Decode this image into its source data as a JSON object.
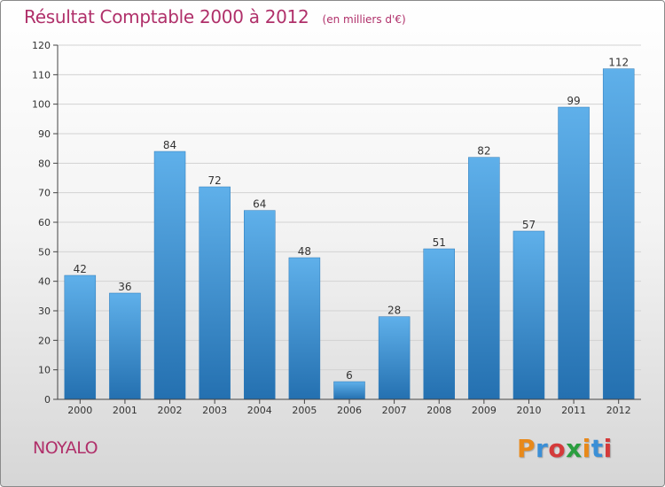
{
  "title": "Résultat Comptable 2000 à 2012",
  "subtitle": "(en milliers d'€)",
  "commune": "NOYALO",
  "brand": {
    "text": "Proxiti",
    "letter_colors": [
      "#e8891a",
      "#3b8fd6",
      "#d43a3a",
      "#2a9e3f",
      "#e8891a",
      "#3b8fd6",
      "#d43a3a"
    ]
  },
  "colors": {
    "bar_top": "#5fb0ea",
    "bar_bottom": "#2470b0",
    "accent": "#b0306a"
  },
  "chart_data": {
    "type": "bar",
    "title": "Résultat Comptable 2000 à 2012",
    "xlabel": "",
    "ylabel": "(en milliers d'€)",
    "ylim": [
      0,
      120
    ],
    "yticks": [
      0,
      10,
      20,
      30,
      40,
      50,
      60,
      70,
      80,
      90,
      100,
      110,
      120
    ],
    "grid": true,
    "categories": [
      "2000",
      "2001",
      "2002",
      "2003",
      "2004",
      "2005",
      "2006",
      "2007",
      "2008",
      "2009",
      "2010",
      "2011",
      "2012"
    ],
    "values": [
      42,
      36,
      84,
      72,
      64,
      48,
      6,
      28,
      51,
      82,
      57,
      99,
      112
    ]
  }
}
